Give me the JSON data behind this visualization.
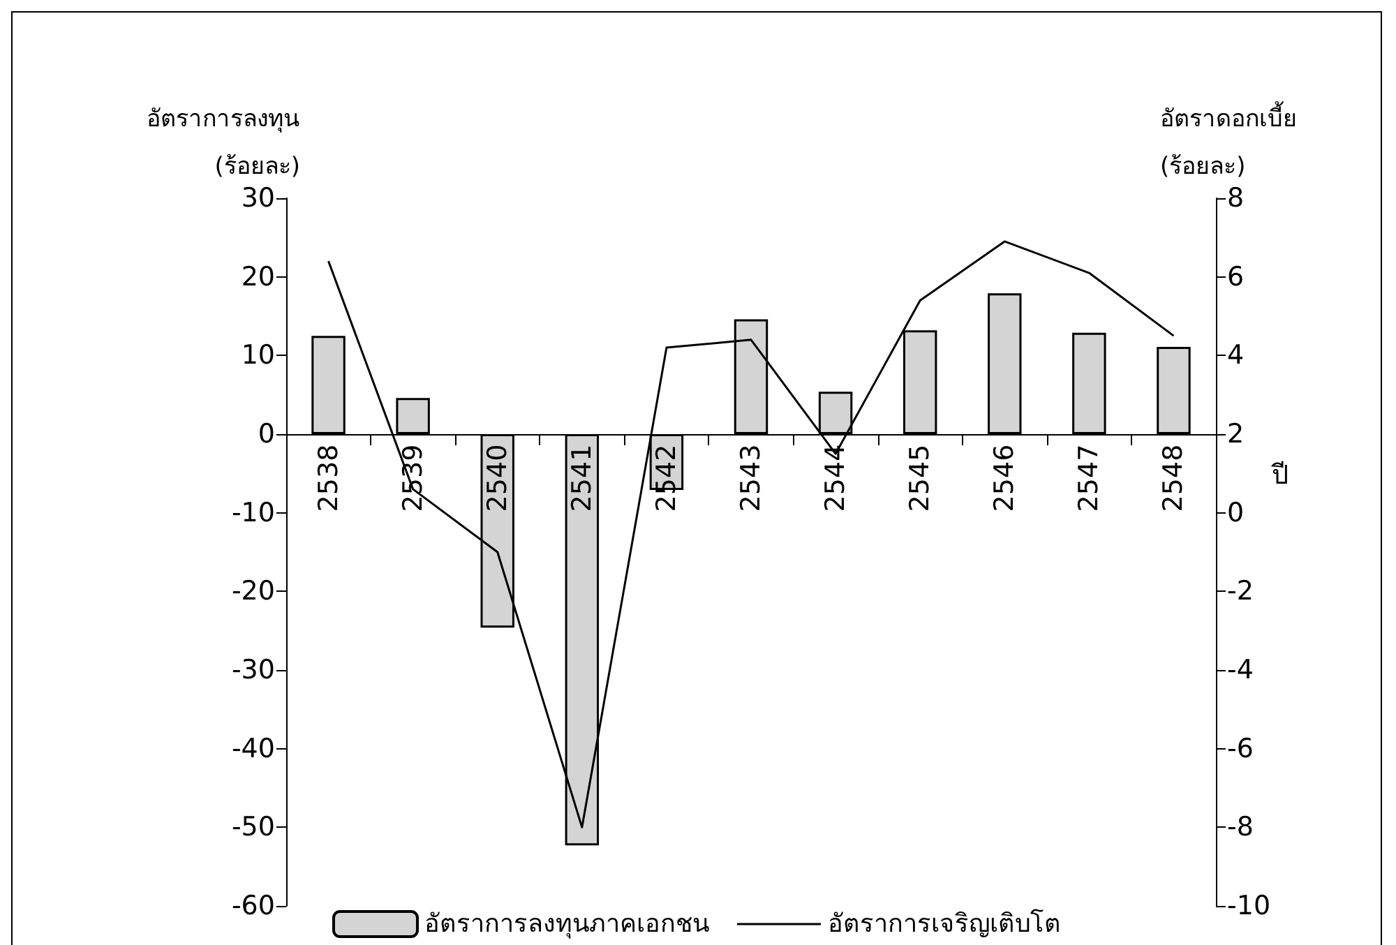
{
  "chart_data": {
    "type": "bar",
    "ylabel": "อัตราการลงทุน (ร้อยละ)",
    "y2label": "อัตราดอกเบี้ย (ร้อยละ)",
    "xlabel": "ปี",
    "categories": [
      "2538",
      "2539",
      "2540",
      "2541",
      "2542",
      "2543",
      "2544",
      "2545",
      "2546",
      "2547",
      "2548"
    ],
    "series": [
      {
        "name": "อัตราการลงทุนภาคเอกชน",
        "color": "#d4d4d4",
        "values": [
          12.5,
          4.6,
          -24.6,
          -52.3,
          -7.1,
          14.6,
          5.4,
          13.2,
          17.9,
          12.9,
          11.1
        ]
      },
      {
        "name": "อัตราการเจริญเติบโต",
        "type": "line",
        "axis": "y2",
        "color": "#000000",
        "values": [
          6.4,
          0.6,
          -1.0,
          -8.0,
          4.2,
          4.4,
          1.5,
          5.4,
          6.9,
          6.1,
          4.5
        ]
      }
    ],
    "ylim": [
      -60,
      30
    ],
    "yticks": [
      -60,
      -50,
      -40,
      -30,
      -20,
      -10,
      0,
      10,
      20,
      30
    ],
    "y2lim": [
      -10,
      8
    ],
    "y2ticks": [
      -10,
      -8,
      -6,
      -4,
      -2,
      0,
      2,
      4,
      6,
      8
    ],
    "legend": "bottom",
    "grid": false,
    "marker": "none",
    "line_style": "solid"
  }
}
